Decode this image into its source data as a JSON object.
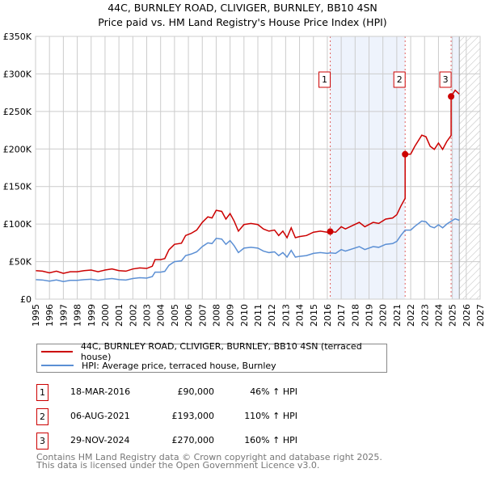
{
  "chart_data": {
    "type": "line",
    "title": "44C, BURNLEY ROAD, CLIVIGER, BURNLEY, BB10 4SN",
    "subtitle": "Price paid vs. HM Land Registry's House Price Index (HPI)",
    "xlim": [
      1995,
      2027
    ],
    "ylim": [
      0,
      350000
    ],
    "x_ticks": [
      "1995",
      "1996",
      "1997",
      "1998",
      "1999",
      "2000",
      "2001",
      "2002",
      "2003",
      "2004",
      "2005",
      "2006",
      "2007",
      "2008",
      "2009",
      "2010",
      "2011",
      "2012",
      "2013",
      "2014",
      "2015",
      "2016",
      "2017",
      "2018",
      "2019",
      "2020",
      "2021",
      "2022",
      "2023",
      "2024",
      "2025",
      "2026",
      "2027"
    ],
    "y_ticks": [
      {
        "v": 0,
        "label": "£0"
      },
      {
        "v": 50000,
        "label": "£50K"
      },
      {
        "v": 100000,
        "label": "£100K"
      },
      {
        "v": 150000,
        "label": "£150K"
      },
      {
        "v": 200000,
        "label": "£200K"
      },
      {
        "v": 250000,
        "label": "£250K"
      },
      {
        "v": 300000,
        "label": "£300K"
      },
      {
        "v": 350000,
        "label": "£350K"
      }
    ],
    "grid": true,
    "data_end_year": 2025.5,
    "series": [
      {
        "name": "44C, BURNLEY ROAD, CLIVIGER, BURNLEY, BB10 4SN (terraced house)",
        "color": "#cc0000",
        "derived_from_hpi_and_sales": true
      },
      {
        "name": "HPI: Average price, terraced house, Burnley",
        "color": "#5b8fd4",
        "x": [
          1995.0,
          1995.5,
          1996.0,
          1996.5,
          1997.0,
          1997.5,
          1998.0,
          1998.5,
          1999.0,
          1999.5,
          2000.0,
          2000.5,
          2001.0,
          2001.5,
          2002.0,
          2002.5,
          2003.0,
          2003.4,
          2003.6,
          2004.0,
          2004.3,
          2004.6,
          2005.0,
          2005.5,
          2005.8,
          2006.2,
          2006.6,
          2007.0,
          2007.4,
          2007.7,
          2008.0,
          2008.4,
          2008.7,
          2009.0,
          2009.3,
          2009.6,
          2010.0,
          2010.5,
          2011.0,
          2011.4,
          2011.8,
          2012.2,
          2012.5,
          2012.8,
          2013.1,
          2013.4,
          2013.7,
          2014.0,
          2014.5,
          2015.0,
          2015.5,
          2016.0,
          2016.21,
          2016.6,
          2017.0,
          2017.3,
          2017.8,
          2018.3,
          2018.7,
          2019.3,
          2019.7,
          2020.2,
          2020.7,
          2021.0,
          2021.3,
          2021.6,
          2022.0,
          2022.3,
          2022.8,
          2023.1,
          2023.4,
          2023.7,
          2024.0,
          2024.3,
          2024.6,
          2024.91,
          2025.2,
          2025.5
        ],
        "y": [
          26000,
          25500,
          24000,
          25500,
          23500,
          25000,
          25000,
          26000,
          26500,
          25000,
          26500,
          27500,
          26000,
          25500,
          27500,
          28500,
          28000,
          30000,
          36000,
          36000,
          37000,
          45000,
          50000,
          51000,
          58000,
          60000,
          63000,
          70000,
          75000,
          74000,
          81000,
          80000,
          73000,
          78000,
          71000,
          62000,
          68000,
          69000,
          68000,
          64000,
          62000,
          63000,
          58000,
          62000,
          56000,
          65000,
          56000,
          57000,
          58000,
          61000,
          62000,
          61000,
          61600,
          61000,
          66000,
          64000,
          67000,
          70000,
          66000,
          70000,
          69000,
          73000,
          74000,
          77000,
          85000,
          91900,
          92000,
          97000,
          104000,
          103000,
          97000,
          95000,
          99000,
          95000,
          100000,
          103800,
          107000,
          105000
        ]
      }
    ],
    "sales": [
      {
        "n": "1",
        "x": 2016.21,
        "date": "18-MAR-2016",
        "price": 90000,
        "price_label": "£90,000",
        "hpi_label": "46% ↑ HPI"
      },
      {
        "n": "2",
        "x": 2021.6,
        "date": "06-AUG-2021",
        "price": 193000,
        "price_label": "£193,000",
        "hpi_label": "110% ↑ HPI"
      },
      {
        "n": "3",
        "x": 2024.91,
        "date": "29-NOV-2024",
        "price": 270000,
        "price_label": "£270,000",
        "hpi_label": "160% ↑ HPI"
      }
    ],
    "legend_placement": "below"
  },
  "footer": {
    "line1": "Contains HM Land Registry data © Crown copyright and database right 2025.",
    "line2": "This data is licensed under the Open Government Licence v3.0."
  }
}
